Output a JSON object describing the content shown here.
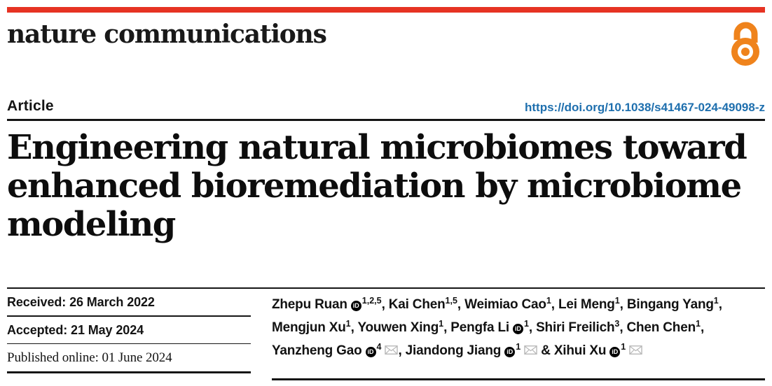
{
  "brand": {
    "journal": "nature communications",
    "bar_color": "#e63323",
    "open_access_icon_color": "#ef831c"
  },
  "article": {
    "kicker": "Article",
    "doi": "https://doi.org/10.1038/s41467-024-49098-z",
    "doi_color": "#1e6fae",
    "title_lines": [
      "Engineering natural microbiomes toward",
      "enhanced bioremediation by microbiome",
      "modeling"
    ]
  },
  "history": [
    {
      "label": "Received:",
      "value": "26 March 2022"
    },
    {
      "label": "Accepted:",
      "value": "21 May 2024"
    },
    {
      "label": "Published online:",
      "value": "01 June 2024"
    }
  ],
  "authors": {
    "orcid_icon_text": "iD",
    "lines": [
      [
        {
          "name": "Zhepu Ruan",
          "orcid": true,
          "sup": "1,2,5",
          "mail": false,
          "sep": ", "
        },
        {
          "name": "Kai Chen",
          "orcid": false,
          "sup": "1,5",
          "mail": false,
          "sep": ", "
        },
        {
          "name": "Weimiao Cao",
          "orcid": false,
          "sup": "1",
          "mail": false,
          "sep": ", "
        },
        {
          "name": "Lei Meng",
          "orcid": false,
          "sup": "1",
          "mail": false,
          "sep": ", "
        },
        {
          "name": "Bingang Yang",
          "orcid": false,
          "sup": "1",
          "mail": false,
          "sep": ","
        }
      ],
      [
        {
          "name": "Mengjun Xu",
          "orcid": false,
          "sup": "1",
          "mail": false,
          "sep": ", "
        },
        {
          "name": "Youwen Xing",
          "orcid": false,
          "sup": "1",
          "mail": false,
          "sep": ", "
        },
        {
          "name": "Pengfa Li",
          "orcid": true,
          "sup": "1",
          "mail": false,
          "sep": ", "
        },
        {
          "name": "Shiri Freilich",
          "orcid": false,
          "sup": "3",
          "mail": false,
          "sep": ", "
        },
        {
          "name": "Chen Chen",
          "orcid": false,
          "sup": "1",
          "mail": false,
          "sep": ","
        }
      ],
      [
        {
          "name": "Yanzheng Gao",
          "orcid": true,
          "sup": "4",
          "mail": true,
          "sep": ", "
        },
        {
          "name": "Jiandong Jiang",
          "orcid": true,
          "sup": "1",
          "mail": true,
          "sep": " & "
        },
        {
          "name": "Xihui Xu",
          "orcid": true,
          "sup": "1",
          "mail": true,
          "sep": ""
        }
      ]
    ]
  }
}
